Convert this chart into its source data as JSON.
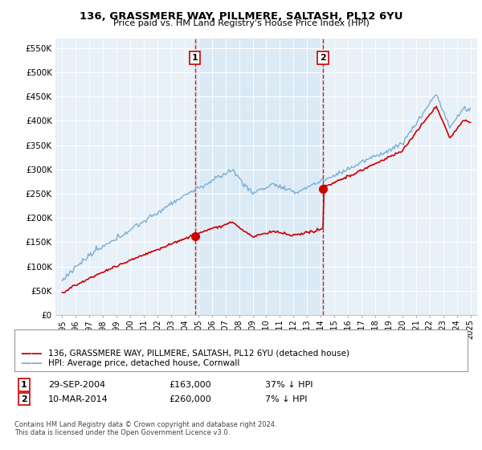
{
  "title": "136, GRASSMERE WAY, PILLMERE, SALTASH, PL12 6YU",
  "subtitle": "Price paid vs. HM Land Registry's House Price Index (HPI)",
  "sale1_date": "29-SEP-2004",
  "sale1_price": 163000,
  "sale1_year": 2004.75,
  "sale1_label": "1",
  "sale1_hpi_diff": "37% ↓ HPI",
  "sale2_date": "10-MAR-2014",
  "sale2_price": 260000,
  "sale2_year": 2014.17,
  "sale2_label": "2",
  "sale2_hpi_diff": "7% ↓ HPI",
  "legend_house": "136, GRASSMERE WAY, PILLMERE, SALTASH, PL12 6YU (detached house)",
  "legend_hpi": "HPI: Average price, detached house, Cornwall",
  "footer": "Contains HM Land Registry data © Crown copyright and database right 2024.\nThis data is licensed under the Open Government Licence v3.0.",
  "house_color": "#cc0000",
  "hpi_color": "#7aafd4",
  "shade_color": "#d6e8f5",
  "vline_color": "#cc0000",
  "bg_color": "#dce9f5",
  "plot_bg": "#e8f0f8",
  "grid_color": "#ffffff",
  "ylim": [
    0,
    570000
  ],
  "xlim_left": 1994.5,
  "xlim_right": 2025.5,
  "yticks": [
    0,
    50000,
    100000,
    150000,
    200000,
    250000,
    300000,
    350000,
    400000,
    450000,
    500000,
    550000
  ],
  "ytick_labels": [
    "£0",
    "£50K",
    "£100K",
    "£150K",
    "£200K",
    "£250K",
    "£300K",
    "£350K",
    "£400K",
    "£450K",
    "£500K",
    "£550K"
  ]
}
